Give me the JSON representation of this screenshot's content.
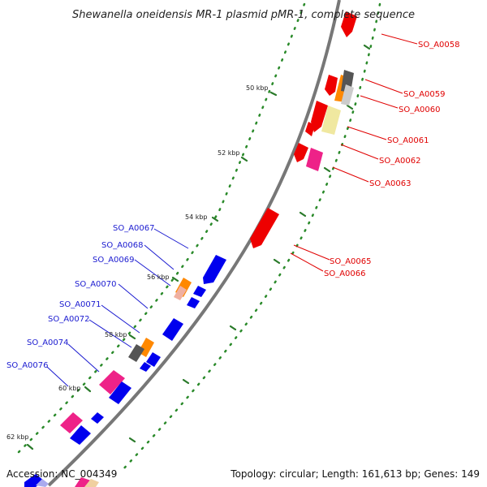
{
  "title": "Shewanella oneidensis MR-1 plasmid pMR-1, complete sequence",
  "footer": {
    "accession": "Accession: NC_004349",
    "summary": "Topology: circular; Length: 161,613 bp; Genes: 149"
  },
  "ticks": [
    "50 kbp",
    "52 kbp",
    "54 kbp",
    "56 kbp",
    "58 kbp",
    "60 kbp",
    "62 kbp"
  ],
  "forward_labels": [
    "SO_A0058",
    "SO_A0059",
    "SO_A0060",
    "SO_A0061",
    "SO_A0062",
    "SO_A0063",
    "SO_A0065",
    "SO_A0066"
  ],
  "reverse_labels": [
    "SO_A0067",
    "SO_A0068",
    "SO_A0069",
    "SO_A0070",
    "SO_A0071",
    "SO_A0072",
    "SO_A0074",
    "SO_A0076"
  ],
  "colors": {
    "forward_label": "#e00000",
    "reverse_label": "#1a1ad0",
    "backbone": "#7a7a7a",
    "gc_dots": "#2a8a2a",
    "forward_gene": "#ee0000",
    "reverse_gene": "#0000ee",
    "magenta_gene": "#ee2288",
    "orange_gene": "#ff8800",
    "gray_gene": "#555555",
    "pale_gene": "#f0e8a0"
  }
}
